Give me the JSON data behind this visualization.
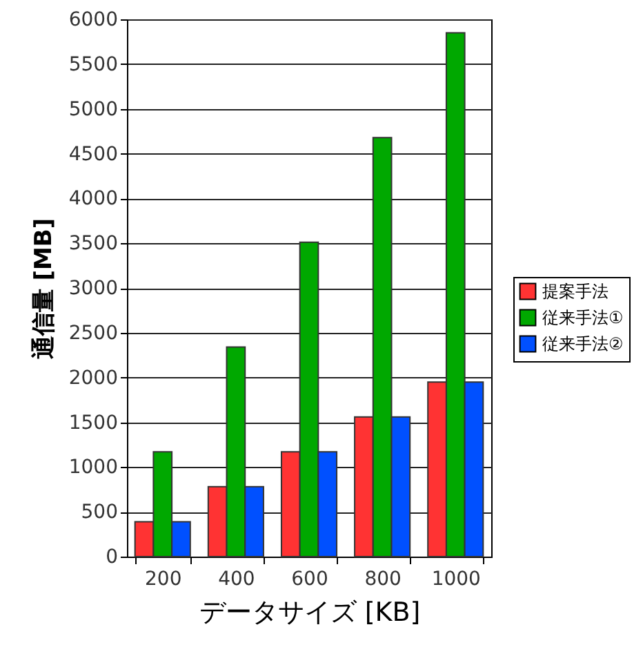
{
  "chart_data": {
    "type": "bar",
    "categories": [
      "200",
      "400",
      "600",
      "800",
      "1000"
    ],
    "series": [
      {
        "name": "提案手法",
        "color": "#ff3333",
        "values": [
          390,
          780,
          1170,
          1560,
          1950
        ]
      },
      {
        "name": "従来手法①",
        "color": "#00a800",
        "values": [
          1170,
          2340,
          3510,
          4680,
          5850
        ]
      },
      {
        "name": "従来手法②",
        "color": "#0050ff",
        "values": [
          390,
          780,
          1170,
          1560,
          1950
        ]
      }
    ],
    "xlabel": "データサイズ [KB]",
    "ylabel": "通信量 [MB]",
    "ylim": [
      0,
      6000
    ],
    "yticks": [
      0,
      500,
      1000,
      1500,
      2000,
      2500,
      3000,
      3500,
      4000,
      4500,
      5000,
      5500,
      6000
    ],
    "grid": "y",
    "legend": "right"
  }
}
